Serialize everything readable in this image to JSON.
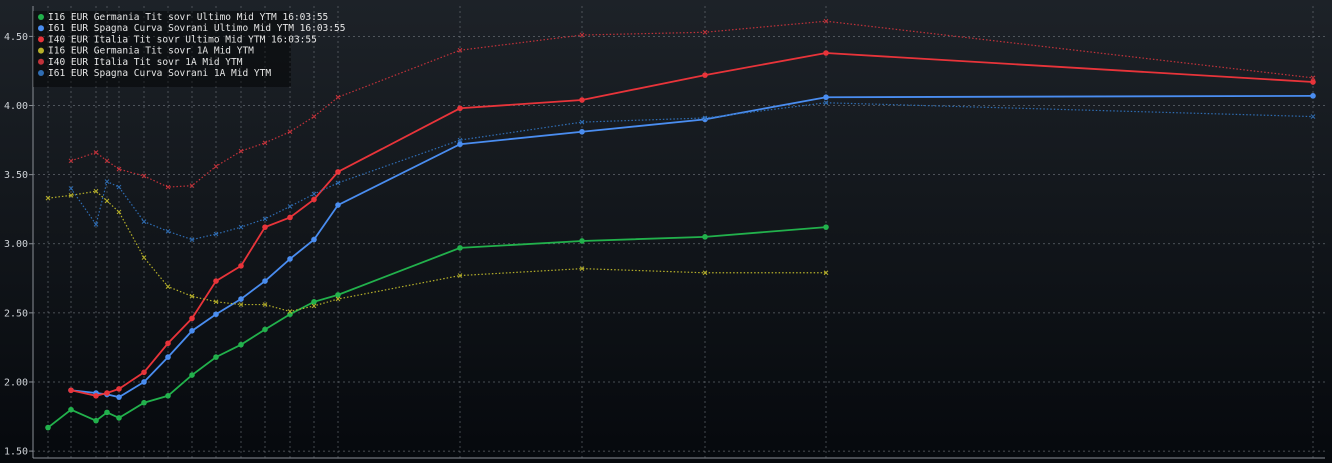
{
  "chart_data": {
    "type": "line",
    "ylim": [
      1.45,
      4.72
    ],
    "y_ticks": [
      "1.50",
      "2.00",
      "2.50",
      "3.00",
      "3.50",
      "4.00",
      "4.50"
    ],
    "y_tick_values": [
      1.5,
      2.0,
      2.5,
      3.0,
      3.5,
      4.0,
      4.5
    ],
    "grid": true,
    "legend_position": "top-left",
    "series": [
      {
        "name": "I16 EUR Germania Tit sovr Ultimo Mid YTM 16:03:55",
        "color": "#22b14c",
        "style": "solid",
        "x": [
          0.25,
          0.5,
          1.0,
          1.25,
          1.5,
          2,
          3,
          4,
          5,
          6,
          7,
          8,
          9,
          10,
          12,
          15,
          20,
          25,
          30
        ],
        "y": [
          1.67,
          1.8,
          1.72,
          1.78,
          1.74,
          1.85,
          1.9,
          2.05,
          2.18,
          2.27,
          2.38,
          2.49,
          2.58,
          2.63,
          2.97,
          3.02,
          3.05,
          3.12,
          null
        ]
      },
      {
        "name": "I61 EUR Spagna Curva Sovrani Ultimo Mid YTM 16:03:55",
        "color": "#4a8df0",
        "style": "solid",
        "x": [
          0.25,
          0.5,
          1.0,
          1.25,
          1.5,
          2,
          3,
          4,
          5,
          6,
          7,
          8,
          9,
          10,
          12,
          15,
          20,
          25,
          30
        ],
        "y": [
          null,
          1.94,
          1.92,
          1.91,
          1.89,
          2.0,
          2.18,
          2.37,
          2.49,
          2.6,
          2.73,
          2.89,
          3.03,
          3.28,
          3.72,
          3.81,
          3.9,
          4.06,
          4.07
        ]
      },
      {
        "name": "I40 EUR Italia Tit sovr Ultimo Mid YTM 16:03:55",
        "color": "#e8343a",
        "style": "solid",
        "x": [
          0.25,
          0.5,
          1.0,
          1.25,
          1.5,
          2,
          3,
          4,
          5,
          6,
          7,
          8,
          9,
          10,
          12,
          15,
          20,
          25,
          30
        ],
        "y": [
          null,
          1.94,
          1.9,
          1.92,
          1.95,
          2.07,
          2.28,
          2.46,
          2.73,
          2.84,
          3.12,
          3.19,
          3.32,
          3.52,
          3.98,
          4.04,
          4.22,
          4.38,
          4.17
        ]
      },
      {
        "name": "I16 EUR Germania Tit sovr 1A Mid YTM",
        "color": "#b6b02a",
        "style": "dotted",
        "x": [
          0.25,
          0.5,
          1.0,
          1.25,
          1.5,
          2,
          3,
          4,
          5,
          6,
          7,
          8,
          9,
          10,
          12,
          15,
          20,
          25,
          30
        ],
        "y": [
          3.33,
          3.35,
          3.38,
          3.31,
          3.23,
          2.9,
          2.69,
          2.62,
          2.58,
          2.56,
          2.56,
          2.51,
          2.55,
          2.6,
          2.77,
          2.82,
          2.79,
          2.79,
          null
        ]
      },
      {
        "name": "I40 EUR Italia Tit sovr 1A Mid YTM",
        "color": "#c2323a",
        "style": "dotted",
        "x": [
          0.25,
          0.5,
          1.0,
          1.25,
          1.5,
          2,
          3,
          4,
          5,
          6,
          7,
          8,
          9,
          10,
          12,
          15,
          20,
          25,
          30
        ],
        "y": [
          null,
          3.6,
          3.66,
          3.6,
          3.54,
          3.49,
          3.41,
          3.42,
          3.56,
          3.67,
          3.73,
          3.81,
          3.92,
          4.06,
          4.4,
          4.51,
          4.53,
          4.61,
          4.2
        ]
      },
      {
        "name": "I61 EUR Spagna Curva Sovrani 1A Mid YTM",
        "color": "#2f6db3",
        "style": "dotted",
        "x": [
          0.25,
          0.5,
          1.0,
          1.25,
          1.5,
          2,
          3,
          4,
          5,
          6,
          7,
          8,
          9,
          10,
          12,
          15,
          20,
          25,
          30
        ],
        "y": [
          null,
          3.4,
          3.14,
          3.45,
          3.41,
          3.16,
          3.09,
          3.03,
          3.07,
          3.12,
          3.18,
          3.27,
          3.36,
          3.44,
          3.75,
          3.88,
          3.91,
          4.02,
          3.92
        ]
      }
    ]
  }
}
